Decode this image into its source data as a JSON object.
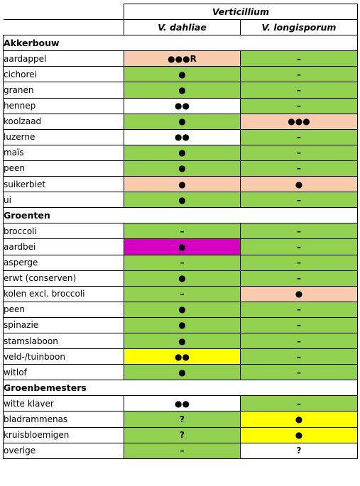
{
  "colors": {
    "green": "#92d050",
    "orange": "#f8cbad",
    "white": "#ffffff",
    "magenta": "#d600c0",
    "yellow": "#ffff00"
  },
  "header": {
    "genus": "Verticillium",
    "col1": "V. dahliae",
    "col2": "V. longisporum"
  },
  "sections": [
    {
      "title": "Akkerbouw",
      "rows": [
        {
          "crop": "aardappel",
          "dahliae": "●●●R",
          "longisporum": "–",
          "dc": "orange",
          "lc": "green"
        },
        {
          "crop": "cichorei",
          "dahliae": "●",
          "longisporum": "–",
          "dc": "green",
          "lc": "green"
        },
        {
          "crop": "granen",
          "dahliae": "●",
          "longisporum": "–",
          "dc": "green",
          "lc": "green"
        },
        {
          "crop": "hennep",
          "dahliae": "●●",
          "longisporum": "–",
          "dc": "white",
          "lc": "green"
        },
        {
          "crop": "koolzaad",
          "dahliae": "●",
          "longisporum": "●●●",
          "dc": "green",
          "lc": "orange"
        },
        {
          "crop": "luzerne",
          "dahliae": "●●",
          "longisporum": "–",
          "dc": "white",
          "lc": "green"
        },
        {
          "crop": "maïs",
          "dahliae": "●",
          "longisporum": "–",
          "dc": "green",
          "lc": "green"
        },
        {
          "crop": "peen",
          "dahliae": "●",
          "longisporum": "–",
          "dc": "green",
          "lc": "green"
        },
        {
          "crop": "suikerbiet",
          "dahliae": "●",
          "longisporum": "●",
          "dc": "orange",
          "lc": "orange"
        },
        {
          "crop": "ui",
          "dahliae": "●",
          "longisporum": "–",
          "dc": "green",
          "lc": "green"
        }
      ]
    },
    {
      "title": "Groenten",
      "rows": [
        {
          "crop": "broccoli",
          "dahliae": "–",
          "longisporum": "–",
          "dc": "green",
          "lc": "green"
        },
        {
          "crop": "aardbei",
          "dahliae": "●",
          "longisporum": "–",
          "dc": "magenta",
          "lc": "green"
        },
        {
          "crop": "asperge",
          "dahliae": "–",
          "longisporum": "–",
          "dc": "green",
          "lc": "green"
        },
        {
          "crop": "erwt (conserven)",
          "dahliae": "●",
          "longisporum": "–",
          "dc": "green",
          "lc": "green"
        },
        {
          "crop": "kolen excl. broccoli",
          "dahliae": "–",
          "longisporum": "●",
          "dc": "green",
          "lc": "orange"
        },
        {
          "crop": "peen",
          "dahliae": "●",
          "longisporum": "–",
          "dc": "green",
          "lc": "green"
        },
        {
          "crop": "spinazie",
          "dahliae": "●",
          "longisporum": "–",
          "dc": "green",
          "lc": "green"
        },
        {
          "crop": "stamslaboon",
          "dahliae": "●",
          "longisporum": "–",
          "dc": "green",
          "lc": "green"
        },
        {
          "crop": "veld-/tuinboon",
          "dahliae": "●●",
          "longisporum": "–",
          "dc": "yellow",
          "lc": "green"
        },
        {
          "crop": "witlof",
          "dahliae": "●",
          "longisporum": "–",
          "dc": "green",
          "lc": "green"
        }
      ]
    },
    {
      "title": "Groenbemesters",
      "rows": [
        {
          "crop": "witte klaver",
          "dahliae": "●●",
          "longisporum": "–",
          "dc": "white",
          "lc": "green"
        },
        {
          "crop": "bladrammenas",
          "dahliae": "?",
          "longisporum": "●",
          "dc": "green",
          "lc": "yellow"
        },
        {
          "crop": "kruisbloemigen",
          "dahliae": "?",
          "longisporum": "●",
          "dc": "green",
          "lc": "yellow"
        },
        {
          "crop": "overige",
          "dahliae": "–",
          "longisporum": "?",
          "dc": "green",
          "lc": "white"
        }
      ]
    }
  ]
}
